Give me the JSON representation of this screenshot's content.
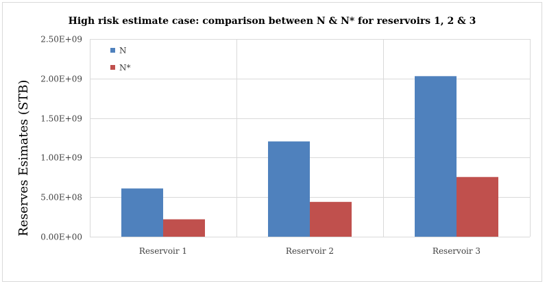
{
  "chart_data": {
    "type": "bar",
    "title": "High risk estimate case:  comparison between N & N* for reservoirs 1, 2 & 3",
    "xlabel": "",
    "ylabel": "Reserves Esimates (STB)",
    "categories": [
      "Reservoir 1",
      "Reservoir 2",
      "Reservoir 3"
    ],
    "series": [
      {
        "name": "N",
        "color": "#4f81bd",
        "values": [
          610000000,
          1205000000,
          2030000000
        ]
      },
      {
        "name": "N*",
        "color": "#c0504d",
        "values": [
          220000000,
          440000000,
          755000000
        ]
      }
    ],
    "ylim": [
      0,
      2500000000
    ],
    "yticks": [
      {
        "value": 0,
        "label": "0.00E+00"
      },
      {
        "value": 500000000,
        "label": "5.00E+08"
      },
      {
        "value": 1000000000,
        "label": "1.00E+09"
      },
      {
        "value": 1500000000,
        "label": "1.50E+09"
      },
      {
        "value": 2000000000,
        "label": "2.00E+09"
      },
      {
        "value": 2500000000,
        "label": "2.50E+09"
      }
    ],
    "grid": true,
    "legend_position": "top-left"
  }
}
